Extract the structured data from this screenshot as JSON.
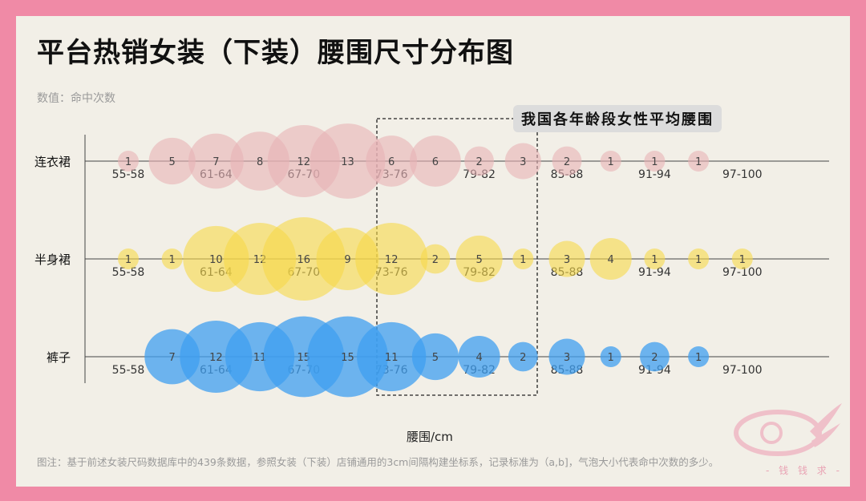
{
  "title": "平台热销女装（下装）腰围尺寸分布图",
  "subtitle": "数值：命中次数",
  "x_axis_title": "腰围/cm",
  "callout": "我国各年龄段女性平均腰围",
  "footnote": "图注：基于前述女装尺码数据库中的439条数据，参照女装（下装）店铺通用的3cm间隔构建坐标系，记录标准为（a,b]，气泡大小代表命中次数的多少。",
  "logo_text": "- 钱 钱 求 -",
  "chart_data": {
    "type": "bubble",
    "tick_labels": [
      "55-58",
      "61-64",
      "67-70",
      "73-76",
      "79-82",
      "85-88",
      "91-94",
      "97-100"
    ],
    "series": [
      {
        "name": "连衣裙",
        "color": "#e8b3b5",
        "opacity": 0.6,
        "values": [
          1,
          5,
          7,
          8,
          12,
          13,
          6,
          6,
          2,
          3,
          2,
          1,
          1,
          1,
          null
        ]
      },
      {
        "name": "半身裙",
        "color": "#f7d94a",
        "opacity": 0.6,
        "values": [
          1,
          1,
          10,
          12,
          16,
          9,
          12,
          2,
          5,
          1,
          3,
          4,
          1,
          1,
          1
        ]
      },
      {
        "name": "裤子",
        "color": "#3f9ff0",
        "opacity": 0.75,
        "values": [
          null,
          7,
          12,
          11,
          15,
          15,
          11,
          5,
          4,
          2,
          3,
          1,
          2,
          1,
          null
        ]
      }
    ]
  }
}
